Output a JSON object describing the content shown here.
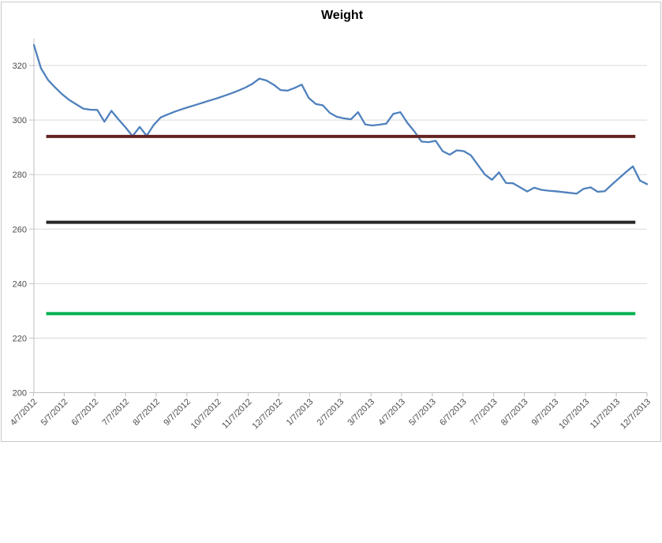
{
  "chart_data": {
    "type": "line",
    "title": "Weight",
    "xlabel": "",
    "ylabel": "",
    "ylim": [
      200,
      330
    ],
    "y_ticks": [
      200,
      220,
      240,
      260,
      280,
      300,
      320
    ],
    "grid": true,
    "legend": "none",
    "x_tick_labels": [
      "4/7/2012",
      "5/7/2012",
      "6/7/2012",
      "7/7/2012",
      "8/7/2012",
      "9/7/2012",
      "10/7/2012",
      "11/7/2012",
      "12/7/2012",
      "1/7/2013",
      "2/7/2013",
      "3/7/2013",
      "4/7/2013",
      "5/7/2013",
      "6/7/2013",
      "7/7/2013",
      "8/7/2013",
      "9/7/2013",
      "10/7/2013",
      "11/7/2013",
      "12/7/2013"
    ],
    "series": [
      {
        "name": "Weight",
        "type": "line",
        "color": "#4F81BD",
        "values": [
          327.5,
          319,
          314.7,
          312,
          309.5,
          307.4,
          305.8,
          304.2,
          303.8,
          303.7,
          299.4,
          303.4,
          300.2,
          297.3,
          294.1,
          297.5,
          294.2,
          298.2,
          301,
          302.1,
          303.1,
          304,
          304.8,
          305.6,
          306.4,
          307.2,
          308,
          308.9,
          309.8,
          310.8,
          311.9,
          313.3,
          315.2,
          314.5,
          313,
          311,
          310.8,
          311.8,
          313,
          308.1,
          305.9,
          305.4,
          302.6,
          301.2,
          300.6,
          300.3,
          302.9,
          298.4,
          298,
          298.3,
          298.7,
          302.3,
          302.9,
          299,
          295.8,
          292.1,
          291.9,
          292.4,
          288.6,
          287.3,
          288.9,
          288.6,
          287.1,
          283.5,
          280,
          278.1,
          280.8,
          276.9,
          276.8,
          275.3,
          273.8,
          275.2,
          274.4,
          274.1,
          273.9,
          273.6,
          273.3,
          273,
          274.8,
          275.3,
          273.7,
          273.9,
          276.3,
          278.6,
          280.9,
          283,
          277.8,
          276.5
        ]
      },
      {
        "name": "reference-line-dark-red",
        "type": "constant-line",
        "color": "#632423",
        "value": 294
      },
      {
        "name": "reference-line-black",
        "type": "constant-line",
        "color": "#262626",
        "value": 262.5
      },
      {
        "name": "reference-line-green",
        "type": "constant-line",
        "color": "#00B050",
        "value": 229
      }
    ]
  },
  "styles": {
    "gridline_color": "#D9D9D9",
    "axis_color": "#BFBFBF",
    "label_color": "#4D4D4D",
    "title_color": "#000000",
    "background": "#FFFFFF"
  }
}
